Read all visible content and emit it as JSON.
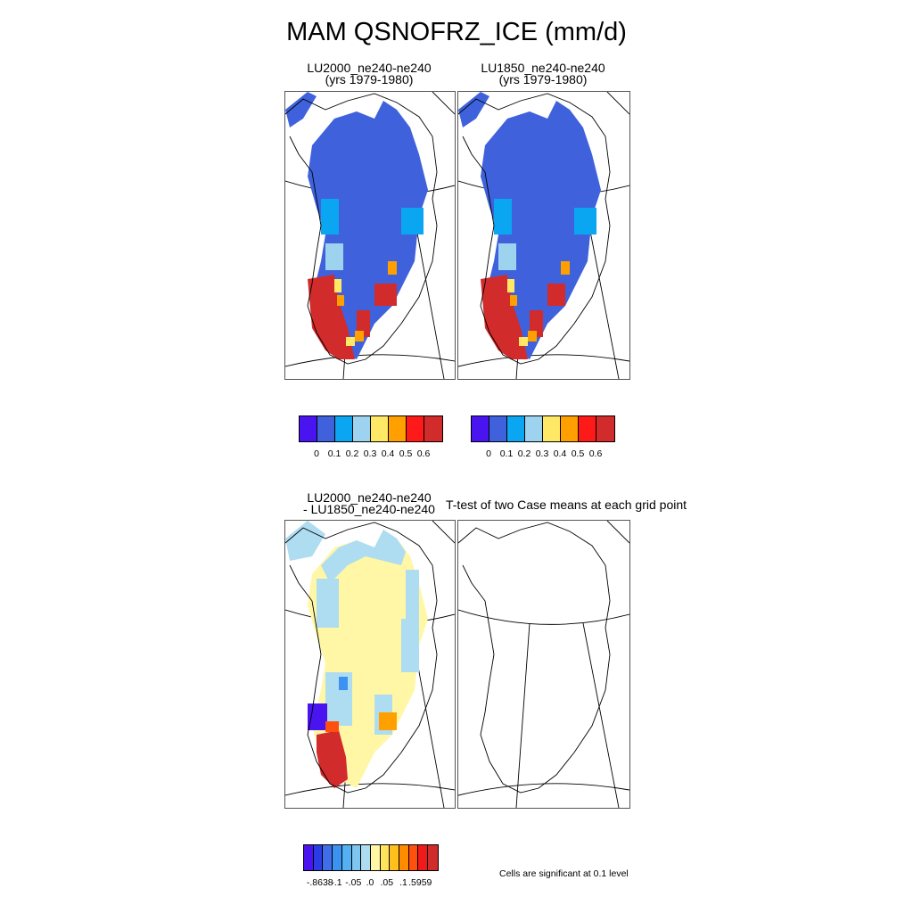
{
  "title": "MAM QSNOFRZ_ICE (mm/d)",
  "panels": {
    "top_left": {
      "title": "LU2000_ne240-ne240\n(yrs 1979-1980)"
    },
    "top_right": {
      "title": "LU1850_ne240-ne240\n(yrs 1979-1980)"
    },
    "bottom_left": {
      "title": "LU2000_ne240-ne240\n- LU1850_ne240-ne240"
    },
    "bottom_right": {
      "title": "T-test of two Case means at each grid point"
    }
  },
  "colorbar_top": {
    "colors": [
      "#4A14F0",
      "#3F62DC",
      "#0BA6F2",
      "#9ED3F0",
      "#FFE866",
      "#FFA000",
      "#FF1A1A",
      "#D22B2B"
    ],
    "labels": [
      "0",
      "0.1",
      "0.2",
      "0.3",
      "0.4",
      "0.5",
      "0.6"
    ]
  },
  "colorbar_diff": {
    "colors": [
      "#4A14F0",
      "#2B3BE6",
      "#3F6EE8",
      "#3C92F0",
      "#53B0F2",
      "#7EC6F0",
      "#AEDCF0",
      "#FFF7A6",
      "#FFE45C",
      "#FFC01E",
      "#FF8C00",
      "#FF5010",
      "#F01A1A",
      "#D22B2B"
    ],
    "labels": [
      "-.8638",
      "-.1",
      "-.05",
      ".0",
      ".05",
      ".1",
      ".5959"
    ]
  },
  "significance_note": "Cells are significant at 0.1 level"
}
